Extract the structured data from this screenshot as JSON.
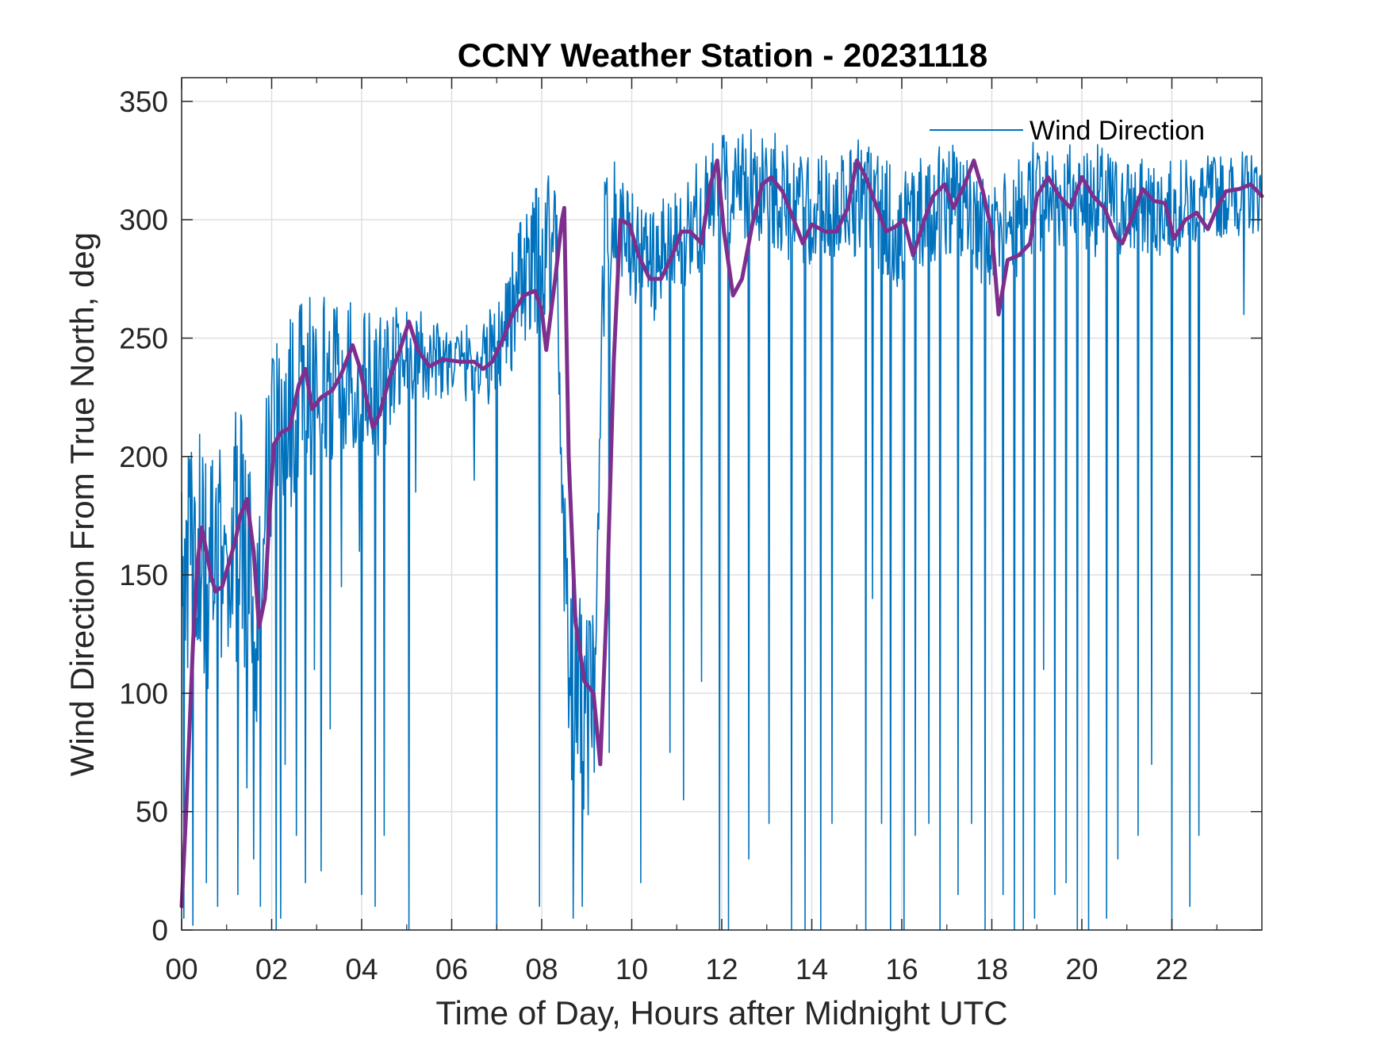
{
  "chart_data": {
    "type": "line",
    "title": "CCNY Weather Station - 20231118",
    "xlabel": "Time of Day, Hours after Midnight UTC",
    "ylabel": "Wind Direction From True North, deg",
    "xlim": [
      0,
      24
    ],
    "ylim": [
      0,
      360
    ],
    "x_ticks": [
      0,
      2,
      4,
      6,
      8,
      10,
      12,
      14,
      16,
      18,
      20,
      22
    ],
    "x_tick_labels": [
      "00",
      "02",
      "04",
      "06",
      "08",
      "10",
      "12",
      "14",
      "16",
      "18",
      "20",
      "22"
    ],
    "y_ticks": [
      0,
      50,
      100,
      150,
      200,
      250,
      300,
      350
    ],
    "y_tick_labels": [
      "0",
      "50",
      "100",
      "150",
      "200",
      "250",
      "300",
      "350"
    ],
    "grid": true,
    "legend_position": "top-right",
    "colors": {
      "raw": "#0072BD",
      "average": "#7E2F8E",
      "axes": "#262626",
      "grid": "#dfdfdf"
    },
    "series": [
      {
        "name": "Wind Direction",
        "style": "thin-noisy",
        "anchors": [
          {
            "x": 0.0,
            "y": 150,
            "spread": 45
          },
          {
            "x": 0.3,
            "y": 160,
            "spread": 55
          },
          {
            "x": 0.7,
            "y": 150,
            "spread": 50
          },
          {
            "x": 1.3,
            "y": 170,
            "spread": 55
          },
          {
            "x": 1.7,
            "y": 140,
            "spread": 55
          },
          {
            "x": 2.0,
            "y": 205,
            "spread": 45
          },
          {
            "x": 2.7,
            "y": 230,
            "spread": 40
          },
          {
            "x": 3.5,
            "y": 235,
            "spread": 35
          },
          {
            "x": 4.5,
            "y": 230,
            "spread": 30
          },
          {
            "x": 5.0,
            "y": 245,
            "spread": 22
          },
          {
            "x": 6.0,
            "y": 240,
            "spread": 15
          },
          {
            "x": 6.8,
            "y": 240,
            "spread": 20
          },
          {
            "x": 7.5,
            "y": 270,
            "spread": 30
          },
          {
            "x": 8.3,
            "y": 295,
            "spread": 35
          },
          {
            "x": 8.6,
            "y": 110,
            "spread": 45
          },
          {
            "x": 9.2,
            "y": 85,
            "spread": 50
          },
          {
            "x": 9.4,
            "y": 300,
            "spread": 30
          },
          {
            "x": 10.5,
            "y": 280,
            "spread": 25
          },
          {
            "x": 11.5,
            "y": 300,
            "spread": 25
          },
          {
            "x": 12.0,
            "y": 315,
            "spread": 25
          },
          {
            "x": 13.0,
            "y": 315,
            "spread": 25
          },
          {
            "x": 14.0,
            "y": 300,
            "spread": 25
          },
          {
            "x": 15.0,
            "y": 310,
            "spread": 25
          },
          {
            "x": 16.0,
            "y": 295,
            "spread": 25
          },
          {
            "x": 17.0,
            "y": 310,
            "spread": 25
          },
          {
            "x": 18.0,
            "y": 290,
            "spread": 25
          },
          {
            "x": 19.0,
            "y": 310,
            "spread": 25
          },
          {
            "x": 20.0,
            "y": 310,
            "spread": 25
          },
          {
            "x": 21.0,
            "y": 305,
            "spread": 22
          },
          {
            "x": 22.0,
            "y": 305,
            "spread": 20
          },
          {
            "x": 23.0,
            "y": 310,
            "spread": 18
          },
          {
            "x": 24.0,
            "y": 312,
            "spread": 18
          }
        ],
        "drops": [
          [
            0.05,
            5
          ],
          [
            0.15,
            200
          ],
          [
            0.25,
            2
          ],
          [
            0.55,
            20
          ],
          [
            0.62,
            170
          ],
          [
            0.8,
            10
          ],
          [
            1.0,
            160
          ],
          [
            1.25,
            15
          ],
          [
            1.45,
            60
          ],
          [
            1.6,
            30
          ],
          [
            1.75,
            10
          ],
          [
            1.85,
            170
          ],
          [
            2.1,
            0
          ],
          [
            2.2,
            5
          ],
          [
            2.3,
            70
          ],
          [
            2.55,
            40
          ],
          [
            2.75,
            20
          ],
          [
            2.95,
            110
          ],
          [
            3.1,
            25
          ],
          [
            3.3,
            85
          ],
          [
            3.55,
            145
          ],
          [
            3.95,
            160
          ],
          [
            4.0,
            15
          ],
          [
            4.3,
            10
          ],
          [
            4.5,
            40
          ],
          [
            5.05,
            0
          ],
          [
            5.2,
            185
          ],
          [
            6.5,
            190
          ],
          [
            7.0,
            0
          ],
          [
            7.95,
            10
          ],
          [
            8.7,
            5
          ],
          [
            8.9,
            10
          ],
          [
            9.5,
            75
          ],
          [
            10.2,
            20
          ],
          [
            10.85,
            75
          ],
          [
            11.15,
            55
          ],
          [
            11.55,
            105
          ],
          [
            11.95,
            0
          ],
          [
            12.15,
            0
          ],
          [
            12.6,
            30
          ],
          [
            13.05,
            45
          ],
          [
            13.55,
            0
          ],
          [
            13.85,
            0
          ],
          [
            14.2,
            0
          ],
          [
            14.45,
            45
          ],
          [
            15.2,
            0
          ],
          [
            15.35,
            140
          ],
          [
            15.55,
            45
          ],
          [
            15.75,
            0
          ],
          [
            16.05,
            0
          ],
          [
            16.3,
            40
          ],
          [
            16.6,
            45
          ],
          [
            16.85,
            0
          ],
          [
            17.25,
            15
          ],
          [
            17.55,
            45
          ],
          [
            17.85,
            0
          ],
          [
            18.25,
            15
          ],
          [
            18.5,
            0
          ],
          [
            18.7,
            0
          ],
          [
            18.95,
            5
          ],
          [
            19.15,
            110
          ],
          [
            19.4,
            15
          ],
          [
            19.65,
            20
          ],
          [
            19.9,
            0
          ],
          [
            20.15,
            0
          ],
          [
            20.55,
            5
          ],
          [
            20.8,
            30
          ],
          [
            21.25,
            40
          ],
          [
            21.55,
            70
          ],
          [
            22.0,
            0
          ],
          [
            22.4,
            10
          ],
          [
            22.6,
            40
          ],
          [
            23.6,
            260
          ]
        ]
      },
      {
        "name": "",
        "style": "thick-smoothed",
        "points": [
          [
            0,
            10
          ],
          [
            0.1,
            50
          ],
          [
            0.25,
            120
          ],
          [
            0.35,
            155
          ],
          [
            0.45,
            170
          ],
          [
            0.55,
            160
          ],
          [
            0.65,
            150
          ],
          [
            0.75,
            143
          ],
          [
            0.9,
            145
          ],
          [
            1.05,
            155
          ],
          [
            1.2,
            165
          ],
          [
            1.3,
            175
          ],
          [
            1.45,
            182
          ],
          [
            1.6,
            160
          ],
          [
            1.72,
            128
          ],
          [
            1.85,
            140
          ],
          [
            1.95,
            175
          ],
          [
            2.05,
            205
          ],
          [
            2.2,
            210
          ],
          [
            2.4,
            212
          ],
          [
            2.6,
            230
          ],
          [
            2.75,
            237
          ],
          [
            2.9,
            220
          ],
          [
            3.1,
            225
          ],
          [
            3.35,
            228
          ],
          [
            3.55,
            235
          ],
          [
            3.8,
            247
          ],
          [
            3.95,
            238
          ],
          [
            4.1,
            225
          ],
          [
            4.25,
            212
          ],
          [
            4.4,
            218
          ],
          [
            4.6,
            232
          ],
          [
            4.85,
            245
          ],
          [
            5.05,
            257
          ],
          [
            5.25,
            245
          ],
          [
            5.5,
            238
          ],
          [
            5.8,
            241
          ],
          [
            6.2,
            240
          ],
          [
            6.5,
            240
          ],
          [
            6.7,
            237
          ],
          [
            6.9,
            240
          ],
          [
            7.15,
            250
          ],
          [
            7.35,
            260
          ],
          [
            7.6,
            268
          ],
          [
            7.85,
            270
          ],
          [
            8.0,
            262
          ],
          [
            8.1,
            245
          ],
          [
            8.3,
            275
          ],
          [
            8.45,
            300
          ],
          [
            8.5,
            305
          ],
          [
            8.6,
            200
          ],
          [
            8.75,
            130
          ],
          [
            8.95,
            105
          ],
          [
            9.15,
            100
          ],
          [
            9.3,
            70
          ],
          [
            9.45,
            140
          ],
          [
            9.6,
            240
          ],
          [
            9.75,
            300
          ],
          [
            9.95,
            298
          ],
          [
            10.15,
            285
          ],
          [
            10.4,
            275
          ],
          [
            10.65,
            275
          ],
          [
            10.9,
            285
          ],
          [
            11.1,
            295
          ],
          [
            11.3,
            295
          ],
          [
            11.55,
            290
          ],
          [
            11.75,
            315
          ],
          [
            11.9,
            325
          ],
          [
            12.05,
            295
          ],
          [
            12.25,
            268
          ],
          [
            12.45,
            275
          ],
          [
            12.7,
            300
          ],
          [
            12.9,
            315
          ],
          [
            13.1,
            318
          ],
          [
            13.35,
            312
          ],
          [
            13.6,
            300
          ],
          [
            13.8,
            290
          ],
          [
            14.0,
            298
          ],
          [
            14.3,
            295
          ],
          [
            14.55,
            295
          ],
          [
            14.8,
            305
          ],
          [
            15.0,
            325
          ],
          [
            15.2,
            318
          ],
          [
            15.45,
            305
          ],
          [
            15.65,
            295
          ],
          [
            15.85,
            297
          ],
          [
            16.05,
            300
          ],
          [
            16.25,
            285
          ],
          [
            16.5,
            300
          ],
          [
            16.7,
            310
          ],
          [
            16.95,
            315
          ],
          [
            17.15,
            305
          ],
          [
            17.4,
            315
          ],
          [
            17.6,
            325
          ],
          [
            17.8,
            312
          ],
          [
            18.0,
            295
          ],
          [
            18.15,
            260
          ],
          [
            18.35,
            283
          ],
          [
            18.6,
            285
          ],
          [
            18.85,
            290
          ],
          [
            19.0,
            310
          ],
          [
            19.25,
            318
          ],
          [
            19.5,
            310
          ],
          [
            19.75,
            305
          ],
          [
            20.0,
            318
          ],
          [
            20.25,
            310
          ],
          [
            20.5,
            305
          ],
          [
            20.75,
            293
          ],
          [
            20.9,
            290
          ],
          [
            21.1,
            300
          ],
          [
            21.35,
            313
          ],
          [
            21.6,
            308
          ],
          [
            21.85,
            307
          ],
          [
            22.05,
            292
          ],
          [
            22.3,
            300
          ],
          [
            22.55,
            303
          ],
          [
            22.8,
            296
          ],
          [
            23.0,
            305
          ],
          [
            23.2,
            312
          ],
          [
            23.5,
            313
          ],
          [
            23.75,
            315
          ],
          [
            24.0,
            310
          ]
        ]
      }
    ]
  }
}
